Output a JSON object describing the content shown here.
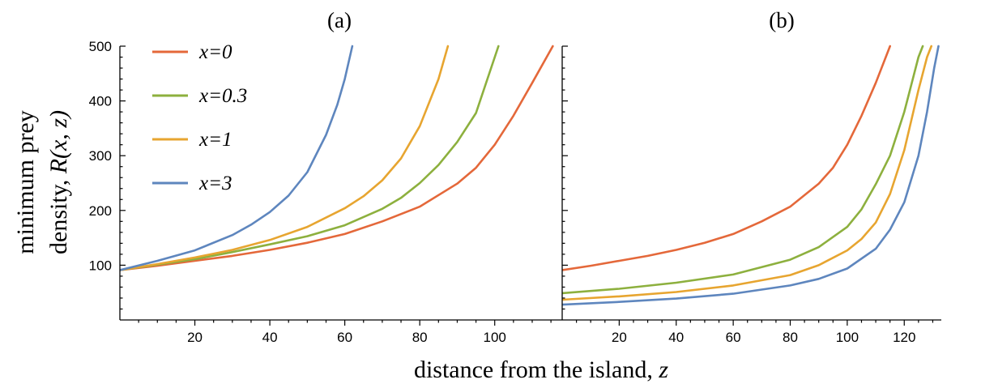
{
  "colors": {
    "x0": "#E4683A",
    "x03": "#8DB03E",
    "x1": "#E7A530",
    "x3": "#5E86BE"
  },
  "figure": {
    "ylabel_line1": "minimum prey",
    "ylabel_line2_prefix": "density, ",
    "ylabel_line2_math": "R(x, z)",
    "xlabel_prefix": "distance from the island, ",
    "xlabel_math": "z"
  },
  "legend": [
    {
      "label": "x=0",
      "color_key": "x0"
    },
    {
      "label": "x=0.3",
      "color_key": "x03"
    },
    {
      "label": "x=1",
      "color_key": "x1"
    },
    {
      "label": "x=3",
      "color_key": "x3"
    }
  ],
  "chart_data": [
    {
      "type": "line",
      "title": "(a)",
      "xlabel": "distance from the island, z",
      "ylabel": "minimum prey density, R(x, z)",
      "xlim": [
        0,
        118
      ],
      "ylim": [
        0,
        500
      ],
      "xticks": [
        20,
        40,
        60,
        80,
        100
      ],
      "yticks": [
        100,
        200,
        300,
        400,
        500
      ],
      "series": [
        {
          "name": "x=0",
          "color_key": "x0",
          "x": [
            0,
            10,
            20,
            30,
            40,
            50,
            60,
            70,
            80,
            90,
            95,
            100,
            105,
            110,
            115.5
          ],
          "y": [
            91,
            99,
            108,
            117,
            128,
            141,
            157,
            180,
            207,
            249,
            278,
            320,
            373,
            433,
            500
          ]
        },
        {
          "name": "x=0.3",
          "color_key": "x03",
          "x": [
            0,
            10,
            20,
            30,
            40,
            50,
            60,
            70,
            75,
            80,
            85,
            90,
            95,
            101
          ],
          "y": [
            91,
            101,
            111,
            124,
            138,
            153,
            173,
            203,
            223,
            250,
            283,
            325,
            378,
            500
          ]
        },
        {
          "name": "x=1",
          "color_key": "x1",
          "x": [
            0,
            10,
            20,
            30,
            40,
            50,
            60,
            65,
            70,
            75,
            80,
            85,
            87.5
          ],
          "y": [
            91,
            102,
            114,
            128,
            146,
            170,
            204,
            226,
            255,
            295,
            354,
            440,
            500
          ]
        },
        {
          "name": "x=3",
          "color_key": "x3",
          "x": [
            0,
            10,
            20,
            30,
            35,
            40,
            45,
            50,
            55,
            58,
            60,
            62
          ],
          "y": [
            91,
            108,
            127,
            155,
            174,
            197,
            227,
            270,
            338,
            393,
            440,
            500
          ]
        }
      ]
    },
    {
      "type": "line",
      "title": "(b)",
      "xlabel": "distance from the island, z",
      "ylabel": "",
      "xlim": [
        0,
        133
      ],
      "ylim": [
        0,
        500
      ],
      "xticks": [
        20,
        40,
        60,
        80,
        100,
        120
      ],
      "yticks": [
        100,
        200,
        300,
        400,
        500
      ],
      "series": [
        {
          "name": "x=0",
          "color_key": "x0",
          "x": [
            0,
            10,
            20,
            30,
            40,
            50,
            60,
            70,
            80,
            90,
            95,
            100,
            105,
            110,
            115
          ],
          "y": [
            91,
            99,
            108,
            117,
            128,
            141,
            157,
            180,
            207,
            249,
            278,
            320,
            373,
            433,
            500
          ]
        },
        {
          "name": "x=0.3",
          "color_key": "x03",
          "x": [
            0,
            20,
            40,
            60,
            80,
            90,
            100,
            105,
            110,
            115,
            120,
            123,
            125,
            126.5
          ],
          "y": [
            49,
            57,
            68,
            83,
            110,
            133,
            170,
            202,
            248,
            300,
            380,
            440,
            480,
            500
          ]
        },
        {
          "name": "x=1",
          "color_key": "x1",
          "x": [
            0,
            20,
            40,
            60,
            80,
            90,
            100,
            105,
            110,
            115,
            120,
            125,
            128,
            129.5
          ],
          "y": [
            37,
            43,
            51,
            63,
            82,
            100,
            127,
            148,
            178,
            230,
            310,
            420,
            480,
            500
          ]
        },
        {
          "name": "x=3",
          "color_key": "x3",
          "x": [
            0,
            20,
            40,
            60,
            80,
            90,
            100,
            110,
            115,
            120,
            125,
            128,
            130.5,
            132
          ],
          "y": [
            28,
            33,
            39,
            48,
            63,
            75,
            94,
            130,
            165,
            215,
            300,
            380,
            460,
            500
          ]
        }
      ]
    }
  ]
}
